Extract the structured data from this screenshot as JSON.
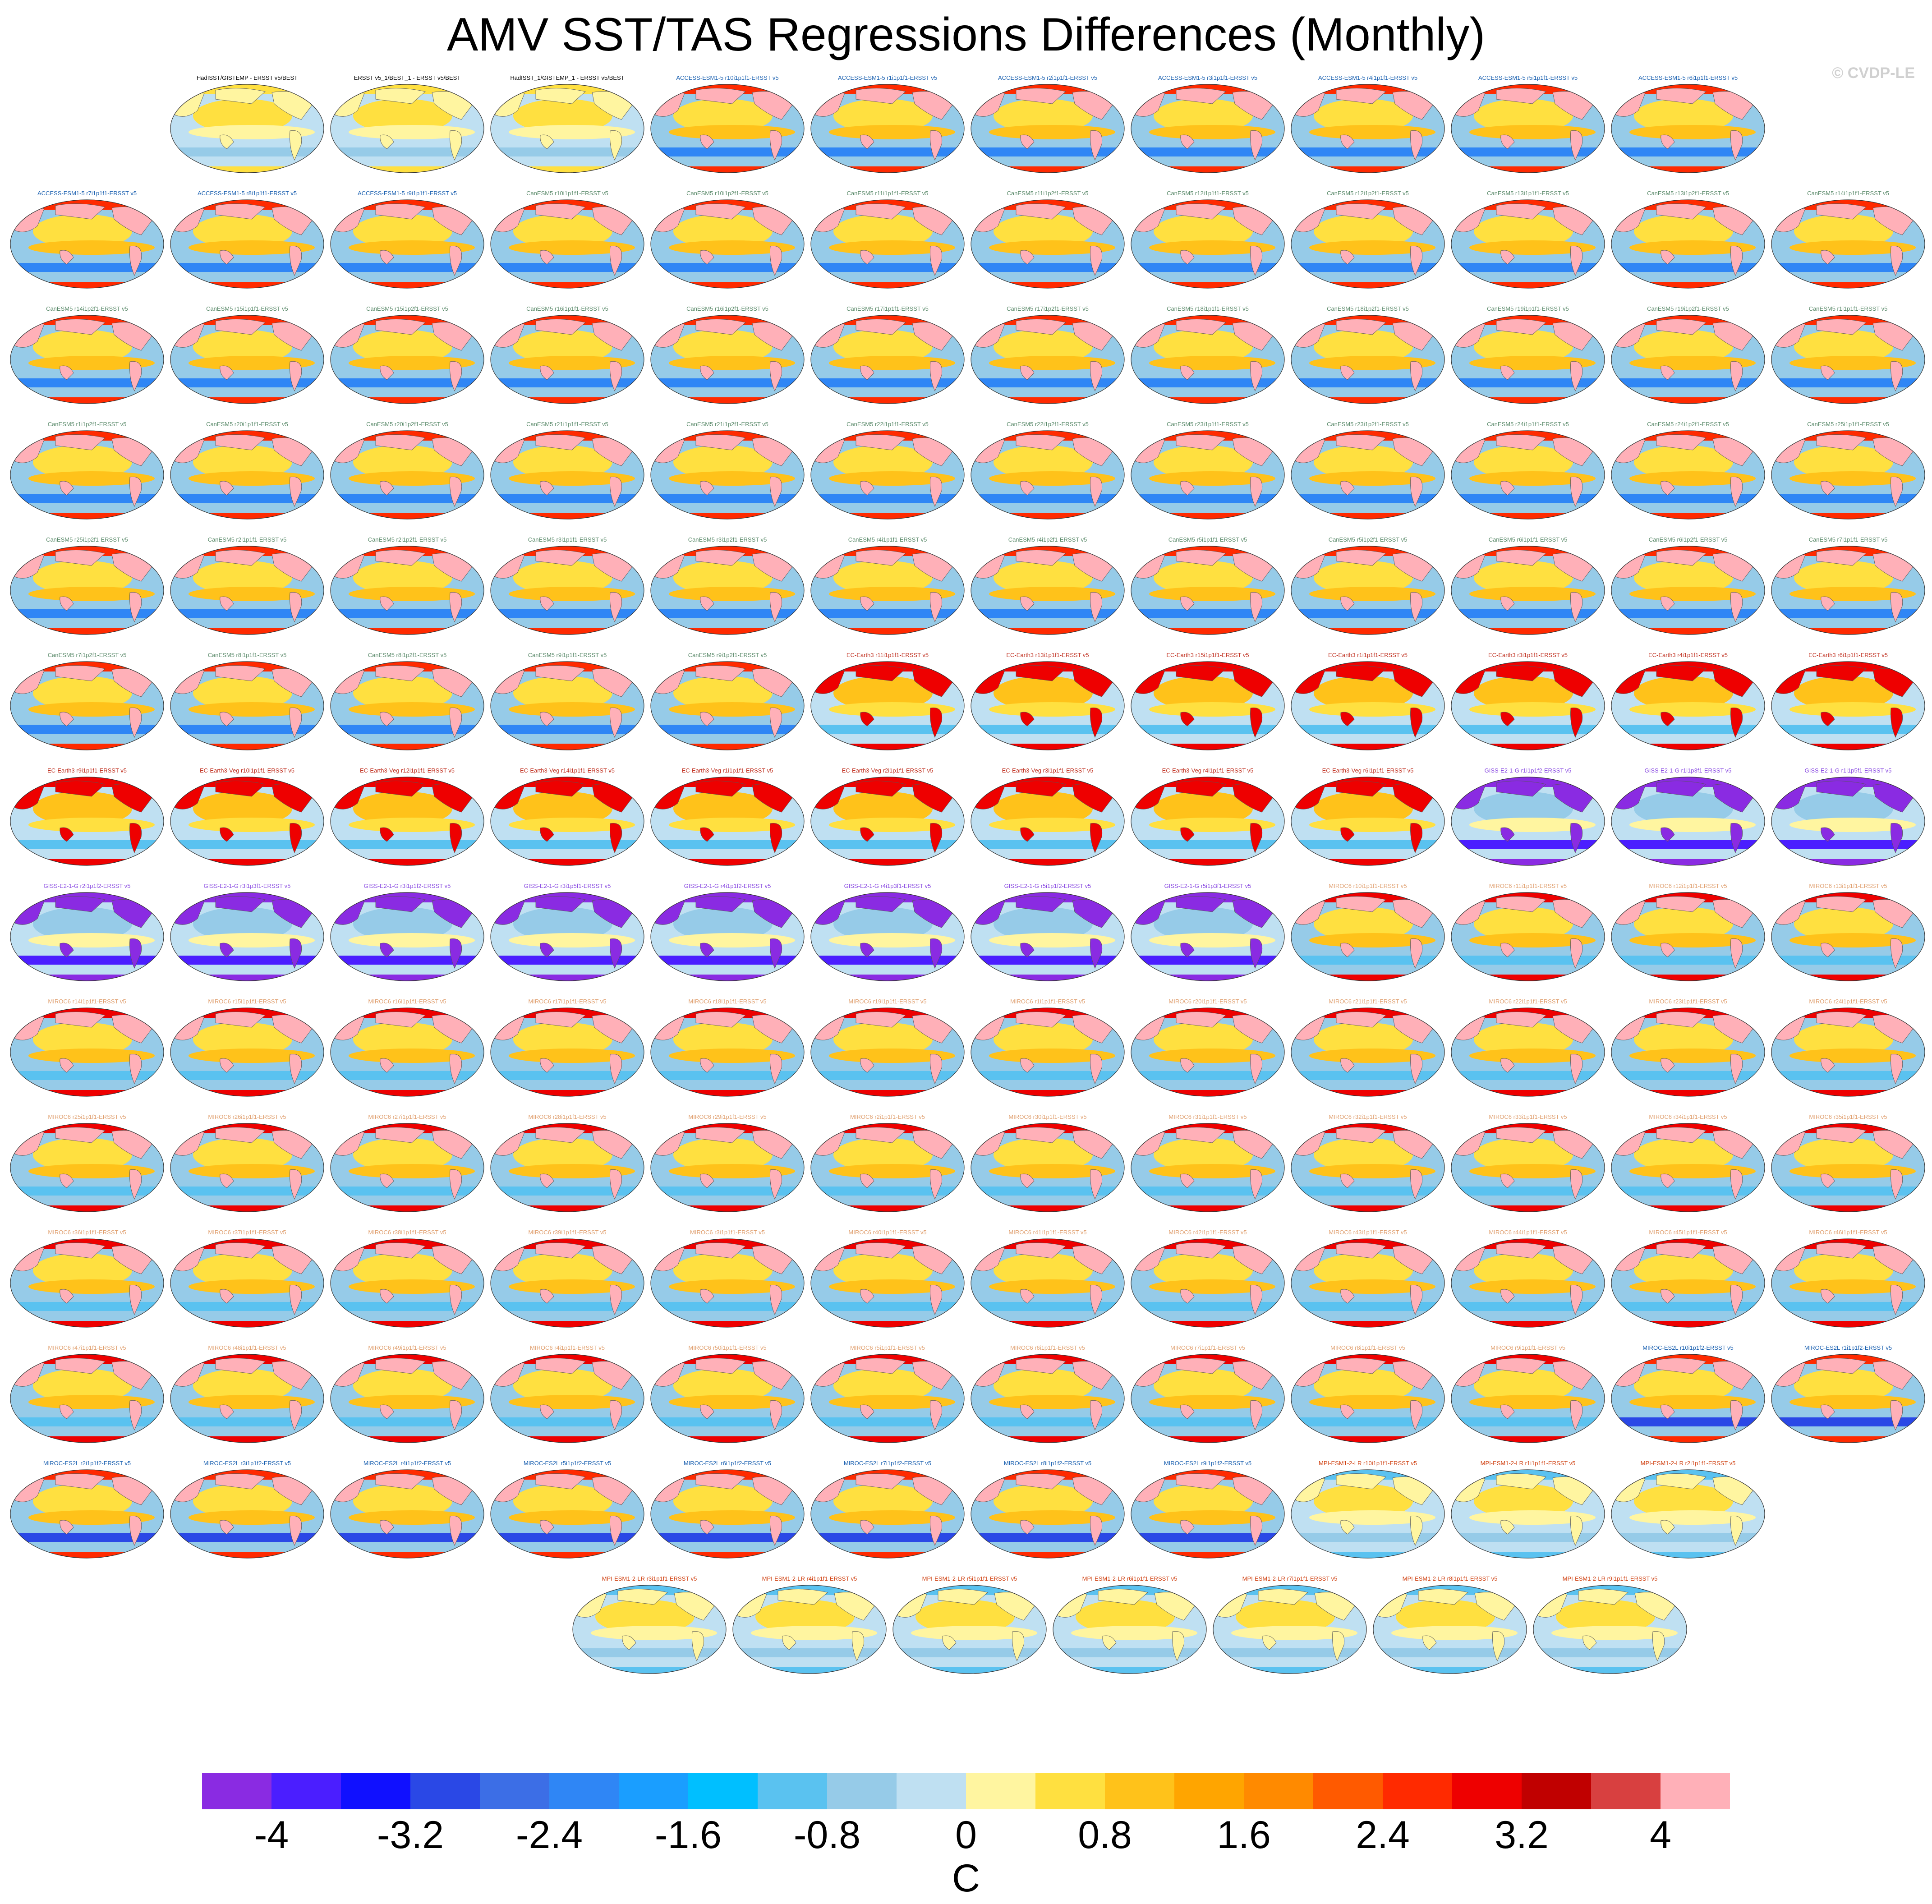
{
  "title": "AMV SST/TAS Regressions Differences (Monthly)",
  "copyright": "© CVDP-LE",
  "colorbar": {
    "units": "C",
    "tick_labels": [
      "-4",
      "-3.2",
      "-2.4",
      "-1.6",
      "-0.8",
      "0",
      "0.8",
      "1.6",
      "2.4",
      "3.2",
      "4"
    ],
    "colors": [
      "#8a2be2",
      "#4b1eff",
      "#1010ff",
      "#2a48e6",
      "#3c6ee6",
      "#2f86f5",
      "#1a9eff",
      "#00bfff",
      "#5ac2f0",
      "#96cbe8",
      "#bfe0f2",
      "#fff5a0",
      "#ffe040",
      "#ffc21a",
      "#ffa500",
      "#ff8a00",
      "#ff5a00",
      "#ff2a00",
      "#ee0000",
      "#c00000",
      "#d84040",
      "#ffb0b8"
    ]
  },
  "chart_data": {
    "type": "heatmap",
    "title": "AMV SST/TAS Regressions Differences (Monthly)",
    "units": "C",
    "levels": [
      -4.4,
      4.4
    ],
    "level_step": 0.4,
    "projection": "global map panels",
    "panels": [
      {
        "label": "HadISST/GISTEMP - ERSST v5/BEST",
        "family": "obs"
      },
      {
        "label": "ERSST v5_1/BEST_1 - ERSST v5/BEST",
        "family": "obs"
      },
      {
        "label": "HadISST_1/GISTEMP_1 - ERSST v5/BEST",
        "family": "obs"
      },
      {
        "label": "ACCESS-ESM1-5 r10i1p1f1-ERSST v5",
        "family": "access"
      },
      {
        "label": "ACCESS-ESM1-5 r1i1p1f1-ERSST v5",
        "family": "access"
      },
      {
        "label": "ACCESS-ESM1-5 r2i1p1f1-ERSST v5",
        "family": "access"
      },
      {
        "label": "ACCESS-ESM1-5 r3i1p1f1-ERSST v5",
        "family": "access"
      },
      {
        "label": "ACCESS-ESM1-5 r4i1p1f1-ERSST v5",
        "family": "access"
      },
      {
        "label": "ACCESS-ESM1-5 r5i1p1f1-ERSST v5",
        "family": "access"
      },
      {
        "label": "ACCESS-ESM1-5 r6i1p1f1-ERSST v5",
        "family": "access"
      },
      {
        "label": "ACCESS-ESM1-5 r7i1p1f1-ERSST v5",
        "family": "access"
      },
      {
        "label": "ACCESS-ESM1-5 r8i1p1f1-ERSST v5",
        "family": "access"
      },
      {
        "label": "ACCESS-ESM1-5 r9i1p1f1-ERSST v5",
        "family": "access"
      },
      {
        "label": "CanESM5 r10i1p1f1-ERSST v5",
        "family": "canesm"
      },
      {
        "label": "CanESM5 r10i1p2f1-ERSST v5",
        "family": "canesm"
      },
      {
        "label": "CanESM5 r11i1p1f1-ERSST v5",
        "family": "canesm"
      },
      {
        "label": "CanESM5 r11i1p2f1-ERSST v5",
        "family": "canesm"
      },
      {
        "label": "CanESM5 r12i1p1f1-ERSST v5",
        "family": "canesm"
      },
      {
        "label": "CanESM5 r12i1p2f1-ERSST v5",
        "family": "canesm"
      },
      {
        "label": "CanESM5 r13i1p1f1-ERSST v5",
        "family": "canesm"
      },
      {
        "label": "CanESM5 r13i1p2f1-ERSST v5",
        "family": "canesm"
      },
      {
        "label": "CanESM5 r14i1p1f1-ERSST v5",
        "family": "canesm"
      },
      {
        "label": "CanESM5 r14i1p2f1-ERSST v5",
        "family": "canesm"
      },
      {
        "label": "CanESM5 r15i1p1f1-ERSST v5",
        "family": "canesm"
      },
      {
        "label": "CanESM5 r15i1p2f1-ERSST v5",
        "family": "canesm"
      },
      {
        "label": "CanESM5 r16i1p1f1-ERSST v5",
        "family": "canesm"
      },
      {
        "label": "CanESM5 r16i1p2f1-ERSST v5",
        "family": "canesm"
      },
      {
        "label": "CanESM5 r17i1p1f1-ERSST v5",
        "family": "canesm"
      },
      {
        "label": "CanESM5 r17i1p2f1-ERSST v5",
        "family": "canesm"
      },
      {
        "label": "CanESM5 r18i1p1f1-ERSST v5",
        "family": "canesm"
      },
      {
        "label": "CanESM5 r18i1p2f1-ERSST v5",
        "family": "canesm"
      },
      {
        "label": "CanESM5 r19i1p1f1-ERSST v5",
        "family": "canesm"
      },
      {
        "label": "CanESM5 r19i1p2f1-ERSST v5",
        "family": "canesm"
      },
      {
        "label": "CanESM5 r1i1p1f1-ERSST v5",
        "family": "canesm"
      },
      {
        "label": "CanESM5 r1i1p2f1-ERSST v5",
        "family": "canesm"
      },
      {
        "label": "CanESM5 r20i1p1f1-ERSST v5",
        "family": "canesm"
      },
      {
        "label": "CanESM5 r20i1p2f1-ERSST v5",
        "family": "canesm"
      },
      {
        "label": "CanESM5 r21i1p1f1-ERSST v5",
        "family": "canesm"
      },
      {
        "label": "CanESM5 r21i1p2f1-ERSST v5",
        "family": "canesm"
      },
      {
        "label": "CanESM5 r22i1p1f1-ERSST v5",
        "family": "canesm"
      },
      {
        "label": "CanESM5 r22i1p2f1-ERSST v5",
        "family": "canesm"
      },
      {
        "label": "CanESM5 r23i1p1f1-ERSST v5",
        "family": "canesm"
      },
      {
        "label": "CanESM5 r23i1p2f1-ERSST v5",
        "family": "canesm"
      },
      {
        "label": "CanESM5 r24i1p1f1-ERSST v5",
        "family": "canesm"
      },
      {
        "label": "CanESM5 r24i1p2f1-ERSST v5",
        "family": "canesm"
      },
      {
        "label": "CanESM5 r25i1p1f1-ERSST v5",
        "family": "canesm"
      },
      {
        "label": "CanESM5 r25i1p2f1-ERSST v5",
        "family": "canesm"
      },
      {
        "label": "CanESM5 r2i1p1f1-ERSST v5",
        "family": "canesm"
      },
      {
        "label": "CanESM5 r2i1p2f1-ERSST v5",
        "family": "canesm"
      },
      {
        "label": "CanESM5 r3i1p1f1-ERSST v5",
        "family": "canesm"
      },
      {
        "label": "CanESM5 r3i1p2f1-ERSST v5",
        "family": "canesm"
      },
      {
        "label": "CanESM5 r4i1p1f1-ERSST v5",
        "family": "canesm"
      },
      {
        "label": "CanESM5 r4i1p2f1-ERSST v5",
        "family": "canesm"
      },
      {
        "label": "CanESM5 r5i1p1f1-ERSST v5",
        "family": "canesm"
      },
      {
        "label": "CanESM5 r5i1p2f1-ERSST v5",
        "family": "canesm"
      },
      {
        "label": "CanESM5 r6i1p1f1-ERSST v5",
        "family": "canesm"
      },
      {
        "label": "CanESM5 r6i1p2f1-ERSST v5",
        "family": "canesm"
      },
      {
        "label": "CanESM5 r7i1p1f1-ERSST v5",
        "family": "canesm"
      },
      {
        "label": "CanESM5 r7i1p2f1-ERSST v5",
        "family": "canesm"
      },
      {
        "label": "CanESM5 r8i1p1f1-ERSST v5",
        "family": "canesm"
      },
      {
        "label": "CanESM5 r8i1p2f1-ERSST v5",
        "family": "canesm"
      },
      {
        "label": "CanESM5 r9i1p1f1-ERSST v5",
        "family": "canesm"
      },
      {
        "label": "CanESM5 r9i1p2f1-ERSST v5",
        "family": "canesm"
      },
      {
        "label": "EC-Earth3 r11i1p1f1-ERSST v5",
        "family": "ecearth"
      },
      {
        "label": "EC-Earth3 r13i1p1f1-ERSST v5",
        "family": "ecearth"
      },
      {
        "label": "EC-Earth3 r15i1p1f1-ERSST v5",
        "family": "ecearth"
      },
      {
        "label": "EC-Earth3 r1i1p1f1-ERSST v5",
        "family": "ecearth"
      },
      {
        "label": "EC-Earth3 r3i1p1f1-ERSST v5",
        "family": "ecearth"
      },
      {
        "label": "EC-Earth3 r4i1p1f1-ERSST v5",
        "family": "ecearth"
      },
      {
        "label": "EC-Earth3 r6i1p1f1-ERSST v5",
        "family": "ecearth"
      },
      {
        "label": "EC-Earth3 r9i1p1f1-ERSST v5",
        "family": "ecearth"
      },
      {
        "label": "EC-Earth3-Veg r10i1p1f1-ERSST v5",
        "family": "ecearth"
      },
      {
        "label": "EC-Earth3-Veg r12i1p1f1-ERSST v5",
        "family": "ecearth"
      },
      {
        "label": "EC-Earth3-Veg r14i1p1f1-ERSST v5",
        "family": "ecearth"
      },
      {
        "label": "EC-Earth3-Veg r1i1p1f1-ERSST v5",
        "family": "ecearth"
      },
      {
        "label": "EC-Earth3-Veg r2i1p1f1-ERSST v5",
        "family": "ecearth"
      },
      {
        "label": "EC-Earth3-Veg r3i1p1f1-ERSST v5",
        "family": "ecearth"
      },
      {
        "label": "EC-Earth3-Veg r4i1p1f1-ERSST v5",
        "family": "ecearth"
      },
      {
        "label": "EC-Earth3-Veg r6i1p1f1-ERSST v5",
        "family": "ecearth"
      },
      {
        "label": "GISS-E2-1-G r1i1p1f2-ERSST v5",
        "family": "giss"
      },
      {
        "label": "GISS-E2-1-G r1i1p3f1-ERSST v5",
        "family": "giss"
      },
      {
        "label": "GISS-E2-1-G r1i1p5f1-ERSST v5",
        "family": "giss"
      },
      {
        "label": "GISS-E2-1-G r2i1p1f2-ERSST v5",
        "family": "giss"
      },
      {
        "label": "GISS-E2-1-G r3i1p3f1-ERSST v5",
        "family": "giss"
      },
      {
        "label": "GISS-E2-1-G r3i1p1f2-ERSST v5",
        "family": "giss"
      },
      {
        "label": "GISS-E2-1-G r3i1p5f1-ERSST v5",
        "family": "giss"
      },
      {
        "label": "GISS-E2-1-G r4i1p1f2-ERSST v5",
        "family": "giss"
      },
      {
        "label": "GISS-E2-1-G r4i1p3f1-ERSST v5",
        "family": "giss"
      },
      {
        "label": "GISS-E2-1-G r5i1p1f2-ERSST v5",
        "family": "giss"
      },
      {
        "label": "GISS-E2-1-G r5i1p3f1-ERSST v5",
        "family": "giss"
      },
      {
        "label": "MIROC6 r10i1p1f1-ERSST v5",
        "family": "miroc6"
      },
      {
        "label": "MIROC6 r11i1p1f1-ERSST v5",
        "family": "miroc6"
      },
      {
        "label": "MIROC6 r12i1p1f1-ERSST v5",
        "family": "miroc6"
      },
      {
        "label": "MIROC6 r13i1p1f1-ERSST v5",
        "family": "miroc6"
      },
      {
        "label": "MIROC6 r14i1p1f1-ERSST v5",
        "family": "miroc6"
      },
      {
        "label": "MIROC6 r15i1p1f1-ERSST v5",
        "family": "miroc6"
      },
      {
        "label": "MIROC6 r16i1p1f1-ERSST v5",
        "family": "miroc6"
      },
      {
        "label": "MIROC6 r17i1p1f1-ERSST v5",
        "family": "miroc6"
      },
      {
        "label": "MIROC6 r18i1p1f1-ERSST v5",
        "family": "miroc6"
      },
      {
        "label": "MIROC6 r19i1p1f1-ERSST v5",
        "family": "miroc6"
      },
      {
        "label": "MIROC6 r1i1p1f1-ERSST v5",
        "family": "miroc6"
      },
      {
        "label": "MIROC6 r20i1p1f1-ERSST v5",
        "family": "miroc6"
      },
      {
        "label": "MIROC6 r21i1p1f1-ERSST v5",
        "family": "miroc6"
      },
      {
        "label": "MIROC6 r22i1p1f1-ERSST v5",
        "family": "miroc6"
      },
      {
        "label": "MIROC6 r23i1p1f1-ERSST v5",
        "family": "miroc6"
      },
      {
        "label": "MIROC6 r24i1p1f1-ERSST v5",
        "family": "miroc6"
      },
      {
        "label": "MIROC6 r25i1p1f1-ERSST v5",
        "family": "miroc6"
      },
      {
        "label": "MIROC6 r26i1p1f1-ERSST v5",
        "family": "miroc6"
      },
      {
        "label": "MIROC6 r27i1p1f1-ERSST v5",
        "family": "miroc6"
      },
      {
        "label": "MIROC6 r28i1p1f1-ERSST v5",
        "family": "miroc6"
      },
      {
        "label": "MIROC6 r29i1p1f1-ERSST v5",
        "family": "miroc6"
      },
      {
        "label": "MIROC6 r2i1p1f1-ERSST v5",
        "family": "miroc6"
      },
      {
        "label": "MIROC6 r30i1p1f1-ERSST v5",
        "family": "miroc6"
      },
      {
        "label": "MIROC6 r31i1p1f1-ERSST v5",
        "family": "miroc6"
      },
      {
        "label": "MIROC6 r32i1p1f1-ERSST v5",
        "family": "miroc6"
      },
      {
        "label": "MIROC6 r33i1p1f1-ERSST v5",
        "family": "miroc6"
      },
      {
        "label": "MIROC6 r34i1p1f1-ERSST v5",
        "family": "miroc6"
      },
      {
        "label": "MIROC6 r35i1p1f1-ERSST v5",
        "family": "miroc6"
      },
      {
        "label": "MIROC6 r36i1p1f1-ERSST v5",
        "family": "miroc6"
      },
      {
        "label": "MIROC6 r37i1p1f1-ERSST v5",
        "family": "miroc6"
      },
      {
        "label": "MIROC6 r38i1p1f1-ERSST v5",
        "family": "miroc6"
      },
      {
        "label": "MIROC6 r39i1p1f1-ERSST v5",
        "family": "miroc6"
      },
      {
        "label": "MIROC6 r3i1p1f1-ERSST v5",
        "family": "miroc6"
      },
      {
        "label": "MIROC6 r40i1p1f1-ERSST v5",
        "family": "miroc6"
      },
      {
        "label": "MIROC6 r41i1p1f1-ERSST v5",
        "family": "miroc6"
      },
      {
        "label": "MIROC6 r42i1p1f1-ERSST v5",
        "family": "miroc6"
      },
      {
        "label": "MIROC6 r43i1p1f1-ERSST v5",
        "family": "miroc6"
      },
      {
        "label": "MIROC6 r44i1p1f1-ERSST v5",
        "family": "miroc6"
      },
      {
        "label": "MIROC6 r45i1p1f1-ERSST v5",
        "family": "miroc6"
      },
      {
        "label": "MIROC6 r46i1p1f1-ERSST v5",
        "family": "miroc6"
      },
      {
        "label": "MIROC6 r47i1p1f1-ERSST v5",
        "family": "miroc6"
      },
      {
        "label": "MIROC6 r48i1p1f1-ERSST v5",
        "family": "miroc6"
      },
      {
        "label": "MIROC6 r49i1p1f1-ERSST v5",
        "family": "miroc6"
      },
      {
        "label": "MIROC6 r4i1p1f1-ERSST v5",
        "family": "miroc6"
      },
      {
        "label": "MIROC6 r50i1p1f1-ERSST v5",
        "family": "miroc6"
      },
      {
        "label": "MIROC6 r5i1p1f1-ERSST v5",
        "family": "miroc6"
      },
      {
        "label": "MIROC6 r6i1p1f1-ERSST v5",
        "family": "miroc6"
      },
      {
        "label": "MIROC6 r7i1p1f1-ERSST v5",
        "family": "miroc6"
      },
      {
        "label": "MIROC6 r8i1p1f1-ERSST v5",
        "family": "miroc6"
      },
      {
        "label": "MIROC6 r9i1p1f1-ERSST v5",
        "family": "miroc6"
      },
      {
        "label": "MIROC-ES2L r10i1p1f2-ERSST v5",
        "family": "mirocesl"
      },
      {
        "label": "MIROC-ES2L r1i1p1f2-ERSST v5",
        "family": "mirocesl"
      },
      {
        "label": "MIROC-ES2L r2i1p1f2-ERSST v5",
        "family": "mirocesl"
      },
      {
        "label": "MIROC-ES2L r3i1p1f2-ERSST v5",
        "family": "mirocesl"
      },
      {
        "label": "MIROC-ES2L r4i1p1f2-ERSST v5",
        "family": "mirocesl"
      },
      {
        "label": "MIROC-ES2L r5i1p1f2-ERSST v5",
        "family": "mirocesl"
      },
      {
        "label": "MIROC-ES2L r6i1p1f2-ERSST v5",
        "family": "mirocesl"
      },
      {
        "label": "MIROC-ES2L r7i1p1f2-ERSST v5",
        "family": "mirocesl"
      },
      {
        "label": "MIROC-ES2L r8i1p1f2-ERSST v5",
        "family": "mirocesl"
      },
      {
        "label": "MIROC-ES2L r9i1p1f2-ERSST v5",
        "family": "mirocesl"
      },
      {
        "label": "MPI-ESM1-2-LR r10i1p1f1-ERSST v5",
        "family": "mpi"
      },
      {
        "label": "MPI-ESM1-2-LR r1i1p1f1-ERSST v5",
        "family": "mpi"
      },
      {
        "label": "MPI-ESM1-2-LR r2i1p1f1-ERSST v5",
        "family": "mpi"
      },
      {
        "label": "MPI-ESM1-2-LR r3i1p1f1-ERSST v5",
        "family": "mpi"
      },
      {
        "label": "MPI-ESM1-2-LR r4i1p1f1-ERSST v5",
        "family": "mpi"
      },
      {
        "label": "MPI-ESM1-2-LR r5i1p1f1-ERSST v5",
        "family": "mpi"
      },
      {
        "label": "MPI-ESM1-2-LR r6i1p1f1-ERSST v5",
        "family": "mpi"
      },
      {
        "label": "MPI-ESM1-2-LR r7i1p1f1-ERSST v5",
        "family": "mpi"
      },
      {
        "label": "MPI-ESM1-2-LR r8i1p1f1-ERSST v5",
        "family": "mpi"
      },
      {
        "label": "MPI-ESM1-2-LR r9i1p1f1-ERSST v5",
        "family": "mpi"
      }
    ]
  },
  "families": {
    "obs": {
      "title_color": "#000000",
      "ocean": "#bfe0f2",
      "equator": "#fff5a0",
      "north_pacific": "#ffe040",
      "south_band": "#96cbe8",
      "land": "#fff5a0",
      "rim": "#ffe040"
    },
    "access": {
      "title_color": "#1a60b0",
      "ocean": "#96cbe8",
      "equator": "#ffc21a",
      "north_pacific": "#ffe040",
      "south_band": "#2f86f5",
      "land": "#ffb0b8",
      "rim": "#ff2a00"
    },
    "canesm": {
      "title_color": "#5a8a6a",
      "ocean": "#96cbe8",
      "equator": "#ffc21a",
      "north_pacific": "#ffe040",
      "south_band": "#2f86f5",
      "land": "#ffb0b8",
      "rim": "#ff2a00"
    },
    "ecearth": {
      "title_color": "#c03020",
      "ocean": "#bfe0f2",
      "equator": "#ffe040",
      "north_pacific": "#ffc21a",
      "south_band": "#5ac2f0",
      "land": "#ee0000",
      "rim": "#ee0000"
    },
    "giss": {
      "title_color": "#8a4be2",
      "ocean": "#bfe0f2",
      "equator": "#fff5a0",
      "north_pacific": "#96cbe8",
      "south_band": "#4b1eff",
      "land": "#8a2be2",
      "rim": "#8a2be2"
    },
    "miroc6": {
      "title_color": "#e0a070",
      "ocean": "#96cbe8",
      "equator": "#ffc21a",
      "north_pacific": "#ffe040",
      "south_band": "#5ac2f0",
      "land": "#ffb0b8",
      "rim": "#ee0000"
    },
    "mirocesl": {
      "title_color": "#1a60b0",
      "ocean": "#96cbe8",
      "equator": "#ffc21a",
      "north_pacific": "#ffe040",
      "south_band": "#2a48e6",
      "land": "#ffb0b8",
      "rim": "#ff2a00"
    },
    "mpi": {
      "title_color": "#d04010",
      "ocean": "#bfe0f2",
      "equator": "#fff5a0",
      "north_pacific": "#ffe040",
      "south_band": "#96cbe8",
      "land": "#fff5a0",
      "rim": "#5ac2f0"
    }
  }
}
